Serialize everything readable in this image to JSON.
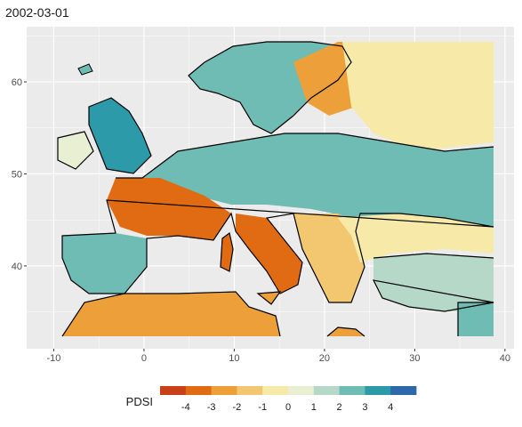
{
  "title": "2002-03-01",
  "map": {
    "x_ticks": [
      -10,
      0,
      10,
      20,
      30,
      40
    ],
    "y_ticks": [
      40,
      50,
      60
    ],
    "xlim": [
      -13,
      41
    ],
    "ylim": [
      31,
      66
    ],
    "panel_color": "#ebebeb",
    "grid_color": "#ffffff",
    "coast_color": "#000000"
  },
  "legend": {
    "title": "PDSI",
    "labels": [
      "-4",
      "-3",
      "-2",
      "-1",
      "0",
      "1",
      "2",
      "3",
      "4"
    ],
    "colors": [
      "#c8401a",
      "#e06b12",
      "#eda03a",
      "#f3c670",
      "#f7eaa8",
      "#e8efd3",
      "#b6d8c8",
      "#6fbcb4",
      "#2c9aa8",
      "#2e68a8"
    ]
  }
}
